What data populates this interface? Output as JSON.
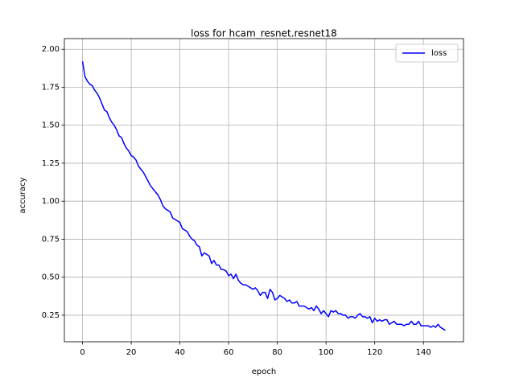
{
  "chart_data": {
    "type": "line",
    "title": "loss for hcam_resnet.resnet18",
    "x_label": "epoch",
    "y_label": "accuracy",
    "x": [
      0,
      1,
      2,
      3,
      4,
      5,
      6,
      7,
      8,
      9,
      10,
      11,
      12,
      13,
      14,
      15,
      16,
      17,
      18,
      19,
      20,
      21,
      22,
      23,
      24,
      25,
      26,
      27,
      28,
      29,
      30,
      31,
      32,
      33,
      34,
      35,
      36,
      37,
      38,
      39,
      40,
      41,
      42,
      43,
      44,
      45,
      46,
      47,
      48,
      49,
      50,
      51,
      52,
      53,
      54,
      55,
      56,
      57,
      58,
      59,
      60,
      61,
      62,
      63,
      64,
      65,
      66,
      67,
      68,
      69,
      70,
      71,
      72,
      73,
      74,
      75,
      76,
      77,
      78,
      79,
      80,
      81,
      82,
      83,
      84,
      85,
      86,
      87,
      88,
      89,
      90,
      91,
      92,
      93,
      94,
      95,
      96,
      97,
      98,
      99,
      100,
      101,
      102,
      103,
      104,
      105,
      106,
      107,
      108,
      109,
      110,
      111,
      112,
      113,
      114,
      115,
      116,
      117,
      118,
      119,
      120,
      121,
      122,
      123,
      124,
      125,
      126,
      127,
      128,
      129,
      130,
      131,
      132,
      133,
      134,
      135,
      136,
      137,
      138,
      139,
      140,
      141,
      142,
      143,
      144,
      145,
      146,
      147,
      148,
      149
    ],
    "series": [
      {
        "name": "loss",
        "color": "#0000ff",
        "values": [
          1.92,
          1.82,
          1.79,
          1.77,
          1.76,
          1.73,
          1.71,
          1.68,
          1.64,
          1.6,
          1.59,
          1.55,
          1.52,
          1.5,
          1.47,
          1.43,
          1.42,
          1.38,
          1.35,
          1.33,
          1.3,
          1.29,
          1.27,
          1.23,
          1.21,
          1.19,
          1.16,
          1.13,
          1.1,
          1.08,
          1.06,
          1.04,
          1.01,
          0.97,
          0.95,
          0.94,
          0.93,
          0.89,
          0.88,
          0.87,
          0.86,
          0.82,
          0.81,
          0.8,
          0.77,
          0.75,
          0.74,
          0.71,
          0.7,
          0.64,
          0.66,
          0.65,
          0.64,
          0.59,
          0.61,
          0.58,
          0.58,
          0.55,
          0.55,
          0.54,
          0.51,
          0.52,
          0.49,
          0.52,
          0.48,
          0.46,
          0.45,
          0.45,
          0.44,
          0.43,
          0.42,
          0.43,
          0.41,
          0.38,
          0.4,
          0.4,
          0.36,
          0.42,
          0.4,
          0.35,
          0.36,
          0.38,
          0.37,
          0.36,
          0.34,
          0.35,
          0.33,
          0.33,
          0.34,
          0.31,
          0.31,
          0.31,
          0.3,
          0.29,
          0.3,
          0.28,
          0.31,
          0.29,
          0.26,
          0.28,
          0.26,
          0.24,
          0.28,
          0.27,
          0.28,
          0.26,
          0.26,
          0.25,
          0.25,
          0.23,
          0.24,
          0.24,
          0.23,
          0.25,
          0.26,
          0.24,
          0.24,
          0.23,
          0.24,
          0.2,
          0.23,
          0.21,
          0.22,
          0.21,
          0.22,
          0.22,
          0.19,
          0.2,
          0.21,
          0.19,
          0.19,
          0.19,
          0.18,
          0.19,
          0.19,
          0.21,
          0.19,
          0.19,
          0.21,
          0.18,
          0.18,
          0.18,
          0.18,
          0.17,
          0.18,
          0.17,
          0.19,
          0.17,
          0.16,
          0.15
        ]
      }
    ],
    "xlim": [
      -7.45,
      156.45
    ],
    "ylim": [
      0.075,
      2.07
    ],
    "xticks": [
      0,
      20,
      40,
      60,
      80,
      100,
      120,
      140
    ],
    "yticks": [
      0.25,
      {
        "value": 0.5,
        "label": "0.50"
      },
      0.75,
      {
        "value": 1,
        "label": "1.00"
      },
      1.25,
      {
        "value": 1.5,
        "label": "1.50"
      },
      1.75,
      {
        "value": 2,
        "label": "2.00"
      }
    ],
    "grid": true,
    "legend": "upper right"
  }
}
